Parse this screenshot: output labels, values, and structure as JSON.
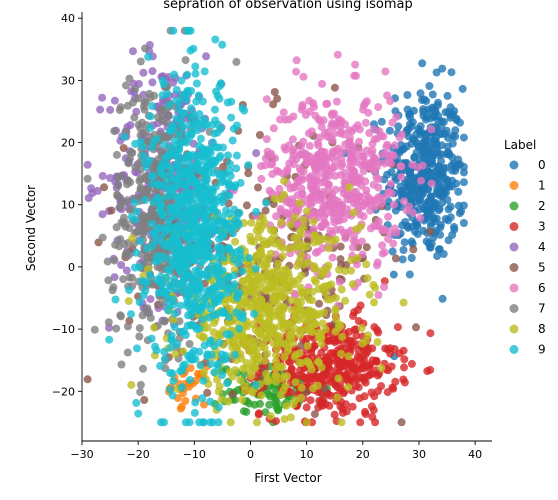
{
  "chart_data": {
    "type": "scatter",
    "title": "sepration of observation using isomap",
    "xlabel": "First Vector",
    "ylabel": "Second Vector",
    "xlim": [
      -30,
      43
    ],
    "ylim": [
      -28,
      41
    ],
    "xticks": [
      "−30",
      "−20",
      "−10",
      "0",
      "10",
      "20",
      "30",
      "40"
    ],
    "xtick_values": [
      -30,
      -20,
      -10,
      0,
      10,
      20,
      30,
      40
    ],
    "yticks": [
      "−20",
      "−10",
      "0",
      "10",
      "20",
      "30",
      "40"
    ],
    "ytick_values": [
      -20,
      -10,
      0,
      10,
      20,
      30,
      40
    ],
    "grid": false,
    "legend": {
      "title": "Label",
      "placement": "right"
    },
    "series": [
      {
        "name": "0",
        "color": "#1f77b4",
        "cx": 31,
        "cy": 15,
        "sx": 3.5,
        "sy": 7,
        "n": 420
      },
      {
        "name": "1",
        "color": "#ff7f0e",
        "cx": -11,
        "cy": -19,
        "sx": 1.5,
        "sy": 1.5,
        "n": 30
      },
      {
        "name": "2",
        "color": "#2ca02c",
        "cx": 4,
        "cy": -20,
        "sx": 5,
        "sy": 2,
        "n": 90
      },
      {
        "name": "3",
        "color": "#d62728",
        "cx": 14,
        "cy": -16,
        "sx": 6,
        "sy": 4,
        "n": 380
      },
      {
        "name": "4",
        "color": "#9467bd",
        "cx": -15,
        "cy": 14,
        "sx": 5,
        "sy": 10,
        "n": 330
      },
      {
        "name": "5",
        "color": "#8c564b",
        "cx": 2,
        "cy": 3,
        "sx": 12,
        "sy": 10,
        "n": 240
      },
      {
        "name": "6",
        "color": "#e377c2",
        "cx": 15,
        "cy": 14,
        "sx": 6,
        "sy": 7,
        "n": 520
      },
      {
        "name": "7",
        "color": "#7f7f7f",
        "cx": -17,
        "cy": 9,
        "sx": 4,
        "sy": 11,
        "n": 380
      },
      {
        "name": "8",
        "color": "#bcbd22",
        "cx": 3,
        "cy": -7,
        "sx": 8,
        "sy": 7,
        "n": 620
      },
      {
        "name": "9",
        "color": "#17becf",
        "cx": -10,
        "cy": 6,
        "sx": 4.2,
        "sy": 12,
        "n": 780
      }
    ]
  }
}
